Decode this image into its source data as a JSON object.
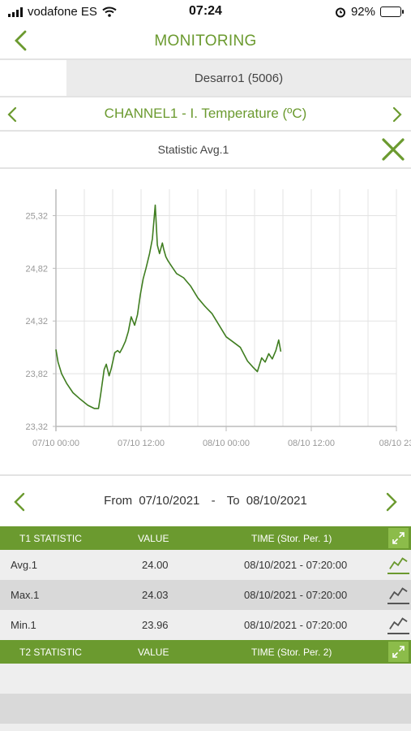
{
  "status_bar": {
    "carrier": "vodafone ES",
    "time": "07:24",
    "battery": "92%",
    "battery_level": 0.92
  },
  "header": {
    "title": "MONITORING"
  },
  "device": {
    "label": "Desarro1 (5006)"
  },
  "channel": {
    "label": "CHANNEL1   -  I. Temperature (ºC)"
  },
  "statistic": {
    "label": "Statistic Avg.1"
  },
  "chart_data": {
    "type": "line",
    "y_ticks": [
      "25,32",
      "24,82",
      "24,32",
      "23,82",
      "23,32"
    ],
    "x_ticks": [
      "07/10 00:00",
      "07/10 12:00",
      "08/10 00:00",
      "08/10 12:00",
      "08/10 23"
    ],
    "ylim": [
      23.32,
      25.57
    ],
    "xlim_hours": [
      0,
      48
    ],
    "grid": true,
    "color": "#3f7d20",
    "series": [
      {
        "x": [
          0,
          0.3,
          0.8,
          1.5,
          2.4,
          3.4,
          4.5,
          5.4,
          6.0,
          6.3,
          6.8,
          7.1,
          7.5,
          7.8,
          8.3,
          8.7,
          9.0,
          9.4,
          9.8,
          10.2,
          10.6,
          11.1,
          11.5,
          11.9,
          12.3,
          12.7,
          13.2,
          13.6,
          14.0,
          14.3,
          14.6,
          14.8,
          15.0,
          15.2,
          15.5,
          15.8,
          16.3,
          17.0,
          18.0,
          19.0,
          20.0,
          21.0,
          22.0,
          23.0,
          24.0,
          25.0,
          26.0,
          27.0,
          27.8,
          28.4,
          29.0,
          29.5,
          30.0,
          30.5,
          31.0,
          31.4,
          31.7
        ],
        "y": [
          24.05,
          23.93,
          23.82,
          23.73,
          23.64,
          23.58,
          23.52,
          23.49,
          23.49,
          23.62,
          23.86,
          23.91,
          23.8,
          23.87,
          24.02,
          24.04,
          24.02,
          24.07,
          24.13,
          24.22,
          24.36,
          24.28,
          24.38,
          24.57,
          24.72,
          24.82,
          24.96,
          25.1,
          25.42,
          25.04,
          24.96,
          25.01,
          25.06,
          25.0,
          24.93,
          24.89,
          24.84,
          24.77,
          24.73,
          24.65,
          24.54,
          24.46,
          24.39,
          24.28,
          24.17,
          24.12,
          24.07,
          23.94,
          23.88,
          23.84,
          23.97,
          23.93,
          24.01,
          23.96,
          24.04,
          24.14,
          24.03
        ]
      }
    ]
  },
  "date_range": {
    "from_label": "From",
    "from": "07/10/2021",
    "sep": "-",
    "to_label": "To",
    "to": "08/10/2021"
  },
  "table1": {
    "headers": {
      "name": "T1 STATISTIC",
      "value": "VALUE",
      "time": "TIME (Stor. Per. 1)"
    },
    "rows": [
      {
        "name": "Avg.1",
        "value": "24.00",
        "time": "08/10/2021 - 07:20:00"
      },
      {
        "name": "Max.1",
        "value": "24.03",
        "time": "08/10/2021 - 07:20:00"
      },
      {
        "name": "Min.1",
        "value": "23.96",
        "time": "08/10/2021 - 07:20:00"
      }
    ]
  },
  "table2": {
    "headers": {
      "name": "T2 STATISTIC",
      "value": "VALUE",
      "time": "TIME (Stor. Per. 2)"
    }
  }
}
